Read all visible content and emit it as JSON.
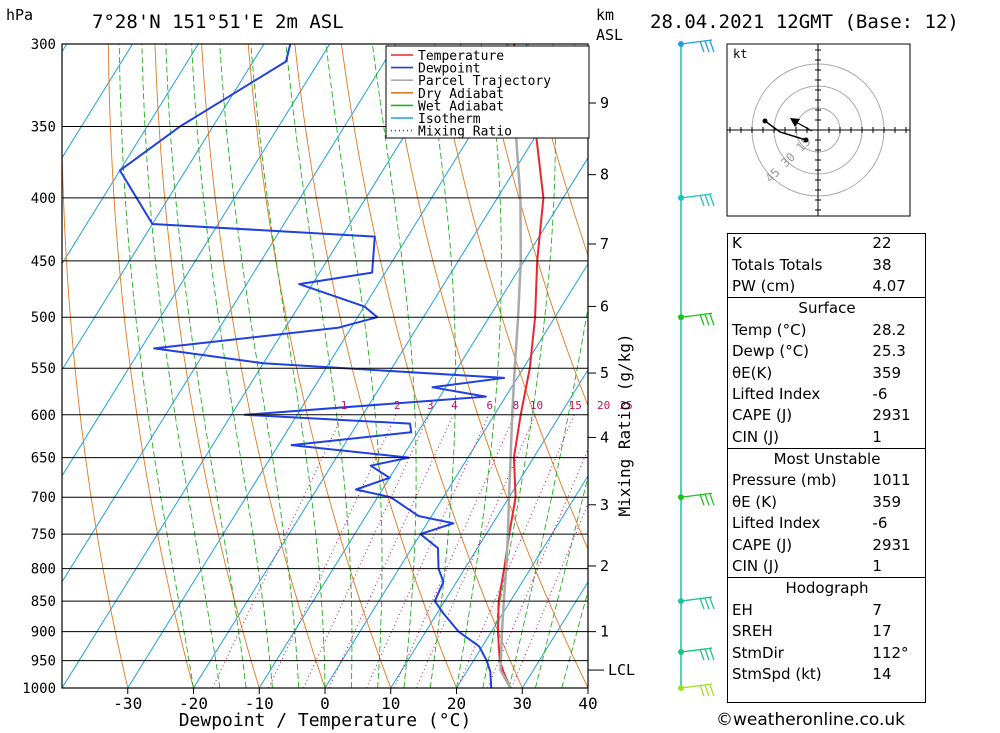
{
  "header": {
    "location": "7°28'N  151°51'E  2m  ASL",
    "datetime": "28.04.2021  12GMT  (Base: 12)",
    "pressure_unit": "hPa",
    "height_unit_line1": "km",
    "height_unit_line2": "ASL"
  },
  "chart_data": {
    "type": "skew-t",
    "xlabel": "Dewpoint / Temperature (°C)",
    "right_axis_label": "Mixing Ratio (g/kg)",
    "pressure_levels": [
      300,
      350,
      400,
      450,
      500,
      550,
      600,
      650,
      700,
      750,
      800,
      850,
      900,
      950,
      1000
    ],
    "x_ticks": [
      -30,
      -20,
      -10,
      0,
      10,
      20,
      30,
      40
    ],
    "xlim": [
      -40,
      40
    ],
    "plim": [
      300,
      1000
    ],
    "height_ticks": [
      {
        "km": 1,
        "p": 900
      },
      {
        "km": 2,
        "p": 796
      },
      {
        "km": 3,
        "p": 710
      },
      {
        "km": 4,
        "p": 626
      },
      {
        "km": 5,
        "p": 555
      },
      {
        "km": 6,
        "p": 490
      },
      {
        "km": 7,
        "p": 436
      },
      {
        "km": 8,
        "p": 383
      },
      {
        "km": 9,
        "p": 335
      }
    ],
    "lcl": {
      "label": "LCL",
      "p": 967
    },
    "mixing_ratios": [
      1,
      2,
      3,
      4,
      6,
      8,
      10,
      15,
      20,
      25
    ],
    "mixing_ratio_label_p": 597,
    "legend": {
      "position": "top-right",
      "entries": [
        {
          "name": "Temperature",
          "color": "#e8262e",
          "style": "solid"
        },
        {
          "name": "Dewpoint",
          "color": "#2040e0",
          "style": "solid"
        },
        {
          "name": "Parcel Trajectory",
          "color": "#aaaaaa",
          "style": "solid"
        },
        {
          "name": "Dry Adiabat",
          "color": "#e07820",
          "style": "solid"
        },
        {
          "name": "Wet Adiabat",
          "color": "#20b020",
          "style": "solid"
        },
        {
          "name": "Isotherm",
          "color": "#20a0e0",
          "style": "solid"
        },
        {
          "name": "Mixing Ratio",
          "color": "#c01060",
          "style": "dotted"
        }
      ]
    },
    "series": [
      {
        "name": "Temperature",
        "color": "#e8262e",
        "points": [
          [
            1000,
            28.2
          ],
          [
            970,
            25.6
          ],
          [
            950,
            24.0
          ],
          [
            925,
            22.5
          ],
          [
            900,
            21.0
          ],
          [
            850,
            18.2
          ],
          [
            800,
            16.0
          ],
          [
            750,
            13.5
          ],
          [
            700,
            11.0
          ],
          [
            650,
            7.0
          ],
          [
            600,
            4.0
          ],
          [
            550,
            1.0
          ],
          [
            500,
            -3.0
          ],
          [
            450,
            -8.0
          ],
          [
            400,
            -13.0
          ],
          [
            350,
            -21.0
          ],
          [
            300,
            -32.0
          ]
        ]
      },
      {
        "name": "Dewpoint",
        "color": "#2040e0",
        "points": [
          [
            1000,
            25.3
          ],
          [
            970,
            23.6
          ],
          [
            950,
            22.0
          ],
          [
            925,
            19.5
          ],
          [
            900,
            15.0
          ],
          [
            870,
            11.0
          ],
          [
            850,
            8.5
          ],
          [
            820,
            8.0
          ],
          [
            800,
            6.0
          ],
          [
            770,
            4.0
          ],
          [
            750,
            0.0
          ],
          [
            735,
            4.0
          ],
          [
            725,
            -2.0
          ],
          [
            700,
            -8.0
          ],
          [
            690,
            -14.0
          ],
          [
            675,
            -10.0
          ],
          [
            660,
            -14.0
          ],
          [
            650,
            -9.0
          ],
          [
            635,
            -28.0
          ],
          [
            620,
            -11.0
          ],
          [
            610,
            -12.0
          ],
          [
            600,
            -38.0
          ],
          [
            580,
            -3.0
          ],
          [
            570,
            -12.0
          ],
          [
            560,
            -2.0
          ],
          [
            545,
            -40.0
          ],
          [
            530,
            -58.0
          ],
          [
            510,
            -32.0
          ],
          [
            500,
            -27.0
          ],
          [
            490,
            -30.0
          ],
          [
            470,
            -42.0
          ],
          [
            460,
            -32.0
          ],
          [
            430,
            -35.0
          ],
          [
            420,
            -70.0
          ],
          [
            380,
            -80.0
          ],
          [
            350,
            -75.0
          ],
          [
            310,
            -65.0
          ],
          [
            300,
            -66.0
          ]
        ]
      },
      {
        "name": "Parcel Trajectory",
        "color": "#aaaaaa",
        "points": [
          [
            1000,
            28.2
          ],
          [
            967,
            25.0
          ],
          [
            900,
            21.6
          ],
          [
            850,
            19.0
          ],
          [
            800,
            16.3
          ],
          [
            750,
            13.3
          ],
          [
            700,
            10.0
          ],
          [
            650,
            6.5
          ],
          [
            600,
            2.7
          ],
          [
            550,
            -1.3
          ],
          [
            500,
            -5.6
          ],
          [
            450,
            -10.5
          ],
          [
            400,
            -16.5
          ],
          [
            350,
            -24.0
          ],
          [
            300,
            -33.0
          ]
        ]
      }
    ],
    "wind_barbs": [
      {
        "p": 1000,
        "color": "#a0e020"
      },
      {
        "p": 935,
        "color": "#20c080"
      },
      {
        "p": 850,
        "color": "#20c0a0"
      },
      {
        "p": 700,
        "color": "#20c020"
      },
      {
        "p": 500,
        "color": "#20c020"
      },
      {
        "p": 400,
        "color": "#20c0c0"
      },
      {
        "p": 300,
        "color": "#20a0e0"
      }
    ]
  },
  "hodograph": {
    "unit": "kt",
    "ring_labels": [
      "15",
      "30",
      "45"
    ]
  },
  "indices": {
    "rows": [
      {
        "label": "K",
        "value": "22"
      },
      {
        "label": "Totals Totals",
        "value": "38"
      },
      {
        "label": "PW (cm)",
        "value": "4.07"
      }
    ],
    "surface": {
      "title": "Surface",
      "rows": [
        {
          "label": "Temp (°C)",
          "value": "28.2"
        },
        {
          "label": "Dewp (°C)",
          "value": "25.3"
        },
        {
          "label": "θE(K)",
          "value": "359"
        },
        {
          "label": "Lifted Index",
          "value": "-6"
        },
        {
          "label": "CAPE (J)",
          "value": "2931"
        },
        {
          "label": "CIN (J)",
          "value": "1"
        }
      ]
    },
    "most_unstable": {
      "title": "Most Unstable",
      "rows": [
        {
          "label": "Pressure (mb)",
          "value": "1011"
        },
        {
          "label": "θE (K)",
          "value": "359"
        },
        {
          "label": "Lifted Index",
          "value": "-6"
        },
        {
          "label": "CAPE (J)",
          "value": "2931"
        },
        {
          "label": "CIN (J)",
          "value": "1"
        }
      ]
    },
    "hodograph_section": {
      "title": "Hodograph",
      "rows": [
        {
          "label": "EH",
          "value": "7"
        },
        {
          "label": "SREH",
          "value": "17"
        },
        {
          "label": "StmDir",
          "value": "112°"
        },
        {
          "label": "StmSpd (kt)",
          "value": "14"
        }
      ]
    }
  },
  "copyright": "©weatheronline.co.uk"
}
